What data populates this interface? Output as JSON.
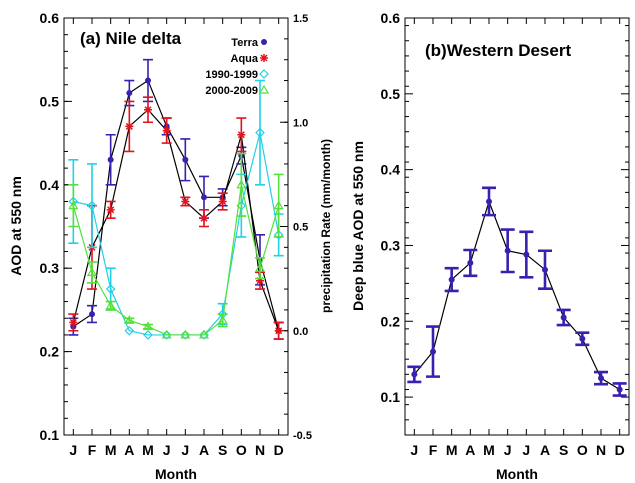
{
  "chart_data": [
    {
      "type": "line",
      "title": "(a) Nile delta",
      "xlabel": "Month",
      "ylabel": "AOD at 550 nm",
      "y2label": "precipitation Rate (mm/month)",
      "categories": [
        "J",
        "F",
        "M",
        "A",
        "M",
        "J",
        "J",
        "A",
        "S",
        "O",
        "N",
        "D"
      ],
      "ylim": [
        0.1,
        0.6
      ],
      "yticks": [
        "0.1",
        "0.2",
        "0.3",
        "0.4",
        "0.5",
        "0.6"
      ],
      "y2lim": [
        -0.5,
        1.5
      ],
      "y2ticks": [
        "-0.5",
        "0.0",
        "0.5",
        "1.0",
        "1.5"
      ],
      "legend_position": "top-right",
      "series": [
        {
          "name": "Terra",
          "axis": "left",
          "color": "#3a1fb0",
          "marker": "dot",
          "values": [
            0.23,
            0.245,
            0.43,
            0.51,
            0.525,
            0.47,
            0.43,
            0.385,
            0.385,
            0.435,
            0.31,
            0.225
          ],
          "errors": [
            0.01,
            0.01,
            0.03,
            0.015,
            0.025,
            0.01,
            0.025,
            0.025,
            0.01,
            0.01,
            0.03,
            0.01
          ]
        },
        {
          "name": "Aqua",
          "axis": "left",
          "color": "#e0141e",
          "marker": "asterisk",
          "values": [
            0.235,
            0.325,
            0.37,
            0.47,
            0.49,
            0.465,
            0.38,
            0.36,
            0.38,
            0.46,
            0.285,
            0.225
          ],
          "errors": [
            0.01,
            0.05,
            0.01,
            0.03,
            0.015,
            0.015,
            0.005,
            0.01,
            0.01,
            0.02,
            0.01,
            0.01
          ]
        },
        {
          "name": "1990-1999",
          "axis": "right",
          "color": "#22d0e8",
          "marker": "diamond",
          "values": [
            0.62,
            0.6,
            0.2,
            0.0,
            -0.02,
            -0.02,
            -0.02,
            -0.02,
            0.08,
            0.6,
            0.95,
            0.46
          ],
          "errors": [
            0.2,
            0.2,
            0.1,
            0.0,
            0.0,
            0.0,
            0.0,
            0.0,
            0.05,
            0.15,
            0.25,
            0.1
          ]
        },
        {
          "name": "2000-2009",
          "axis": "right",
          "color": "#55e03a",
          "marker": "triangle",
          "values": [
            0.6,
            0.28,
            0.12,
            0.05,
            0.02,
            -0.02,
            -0.02,
            -0.02,
            0.05,
            0.7,
            0.3,
            0.6
          ],
          "errors": [
            0.1,
            0.05,
            0.02,
            0.01,
            0.01,
            0.0,
            0.0,
            0.0,
            0.03,
            0.15,
            0.05,
            0.15
          ]
        }
      ]
    },
    {
      "type": "line",
      "title": "(b)Western Desert",
      "xlabel": "Month",
      "ylabel": "Deep blue AOD at 550 nm",
      "categories": [
        "J",
        "F",
        "M",
        "A",
        "M",
        "J",
        "J",
        "A",
        "S",
        "O",
        "N",
        "D"
      ],
      "ylim": [
        0.05,
        0.6
      ],
      "yticks": [
        "0.1",
        "0.2",
        "0.3",
        "0.4",
        "0.5",
        "0.6"
      ],
      "series": [
        {
          "color": "#3a1fb0",
          "marker": "dot",
          "values": [
            0.13,
            0.16,
            0.255,
            0.277,
            0.358,
            0.293,
            0.288,
            0.268,
            0.205,
            0.177,
            0.125,
            0.11
          ],
          "errors": [
            0.01,
            0.033,
            0.015,
            0.017,
            0.018,
            0.028,
            0.03,
            0.025,
            0.01,
            0.008,
            0.008,
            0.008
          ]
        }
      ]
    }
  ]
}
